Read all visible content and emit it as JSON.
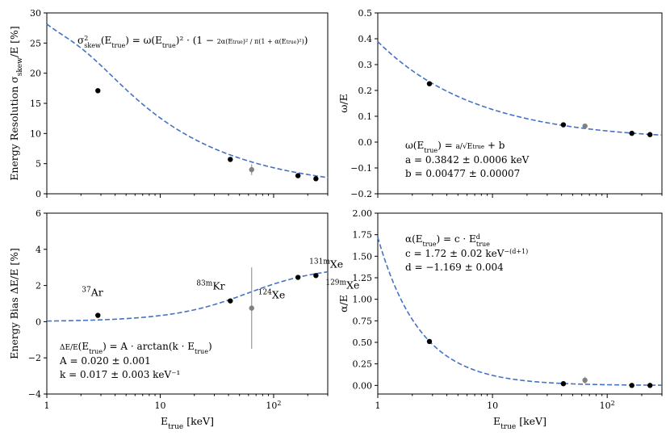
{
  "chart_data": [
    {
      "id": "resolution",
      "type": "scatter",
      "ylabel": "Energy Resolution σ_skew/E [%]",
      "xlabel": "",
      "xscale": "log",
      "xlim": [
        1,
        300
      ],
      "ylim": [
        0,
        30
      ],
      "yticks": [
        0,
        5,
        10,
        15,
        20,
        25,
        30
      ],
      "ytick_labels": [
        "0",
        "5",
        "10",
        "15",
        "20",
        "25",
        "30"
      ],
      "annotation": "σ²_skew(E_true) = ω(E_true)² · (1 − 2α(E_true)² / π(1 + α(E_true)²))",
      "points": [
        {
          "x": 2.82,
          "y": 17.1,
          "color": "#000000"
        },
        {
          "x": 41.5,
          "y": 5.7,
          "color": "#000000"
        },
        {
          "x": 64,
          "y": 4.0,
          "yerr": 0.9,
          "color": "#808080"
        },
        {
          "x": 164,
          "y": 3.0,
          "color": "#000000"
        },
        {
          "x": 236,
          "y": 2.5,
          "color": "#000000"
        }
      ],
      "fit": {
        "formula": "resolution",
        "x": [
          1,
          300
        ]
      }
    },
    {
      "id": "omega",
      "type": "scatter",
      "ylabel": "ω/E",
      "xlabel": "",
      "xscale": "log",
      "xlim": [
        1,
        300
      ],
      "ylim": [
        -0.2,
        0.5
      ],
      "yticks": [
        -0.2,
        -0.1,
        0.0,
        0.1,
        0.2,
        0.3,
        0.4,
        0.5
      ],
      "ytick_labels": [
        "−0.2",
        "−0.1",
        "0.0",
        "0.1",
        "0.2",
        "0.3",
        "0.4",
        "0.5"
      ],
      "annotation_lines": [
        "ω(E_true) = a / √E_true + b",
        "a = 0.3842 ± 0.0006 keV",
        "b = 0.00477 ± 0.00007"
      ],
      "points": [
        {
          "x": 2.82,
          "y": 0.226,
          "color": "#000000"
        },
        {
          "x": 41.5,
          "y": 0.067,
          "color": "#000000"
        },
        {
          "x": 64,
          "y": 0.062,
          "yerr": 0.005,
          "color": "#808080"
        },
        {
          "x": 164,
          "y": 0.034,
          "color": "#000000"
        },
        {
          "x": 236,
          "y": 0.029,
          "color": "#000000"
        }
      ],
      "fit": {
        "formula": "a/sqrt(E)+b",
        "a": 0.3842,
        "b": 0.00477,
        "x": [
          1,
          300
        ]
      }
    },
    {
      "id": "bias",
      "type": "scatter",
      "ylabel": "Energy Bias ΔE/E [%]",
      "xlabel": "E_true [keV]",
      "xscale": "log",
      "xlim": [
        1,
        300
      ],
      "ylim": [
        -4,
        6
      ],
      "yticks": [
        -4,
        -2,
        0,
        2,
        4,
        6
      ],
      "ytick_labels": [
        "−4",
        "−2",
        "0",
        "2",
        "4",
        "6"
      ],
      "xticks": [
        1,
        10,
        100
      ],
      "xtick_labels": [
        "1",
        "10",
        "10²"
      ],
      "annotation_lines": [
        "ΔE/E(E_true) = A · arctan(k · E_true)",
        "A = 0.020 ± 0.001",
        "k = 0.017 ± 0.003 keV⁻¹"
      ],
      "points": [
        {
          "x": 2.82,
          "y": 0.35,
          "color": "#000000"
        },
        {
          "x": 41.5,
          "y": 1.15,
          "color": "#000000"
        },
        {
          "x": 64,
          "y": 0.75,
          "yerr": 2.25,
          "color": "#808080"
        },
        {
          "x": 164,
          "y": 2.45,
          "color": "#000000"
        },
        {
          "x": 236,
          "y": 2.55,
          "color": "#000000"
        }
      ],
      "labels": [
        {
          "mass": "37",
          "element": "Ar",
          "x": 2.82,
          "y": 0.35
        },
        {
          "mass": "83m",
          "element": "Kr",
          "x": 41.5,
          "y": 1.15
        },
        {
          "mass": "124",
          "element": "Xe",
          "x": 64,
          "y": 0.75
        },
        {
          "mass": "131m",
          "element": "Xe",
          "x": 164,
          "y": 2.45
        },
        {
          "mass": "129m",
          "element": "Xe",
          "x": 236,
          "y": 2.55
        }
      ],
      "fit": {
        "formula": "A*arctan(k*E)",
        "A": 0.02,
        "k": 0.017,
        "scale": 100,
        "x": [
          1,
          300
        ]
      }
    },
    {
      "id": "alpha",
      "type": "scatter",
      "ylabel": "α/E",
      "xlabel": "E_true [keV]",
      "xscale": "log",
      "xlim": [
        1,
        300
      ],
      "ylim": [
        -0.1,
        2.0
      ],
      "yticks": [
        0.0,
        0.25,
        0.5,
        0.75,
        1.0,
        1.25,
        1.5,
        1.75,
        2.0
      ],
      "ytick_labels": [
        "0.00",
        "0.25",
        "0.50",
        "0.75",
        "1.00",
        "1.25",
        "1.50",
        "1.75",
        "2.00"
      ],
      "xticks": [
        1,
        10,
        100
      ],
      "xtick_labels": [
        "1",
        "10",
        "10²"
      ],
      "annotation_lines": [
        "α(E_true) = c · E_true^d",
        "c = 1.72 ± 0.02 keV^−(d+1)",
        "d = −1.169 ± 0.004"
      ],
      "points": [
        {
          "x": 2.82,
          "y": 0.51,
          "color": "#000000"
        },
        {
          "x": 41.5,
          "y": 0.02,
          "color": "#000000"
        },
        {
          "x": 64,
          "y": 0.06,
          "yerr": 0.04,
          "color": "#808080"
        },
        {
          "x": 164,
          "y": 0.0,
          "color": "#000000"
        },
        {
          "x": 236,
          "y": 0.0,
          "color": "#000000"
        }
      ],
      "fit": {
        "formula": "c*E^d",
        "c": 1.72,
        "d": -1.169,
        "x": [
          1,
          300
        ]
      }
    }
  ],
  "colors": {
    "fit": "#4472c4",
    "point": "#000000",
    "point_gray": "#808080",
    "axis": "#000000"
  }
}
